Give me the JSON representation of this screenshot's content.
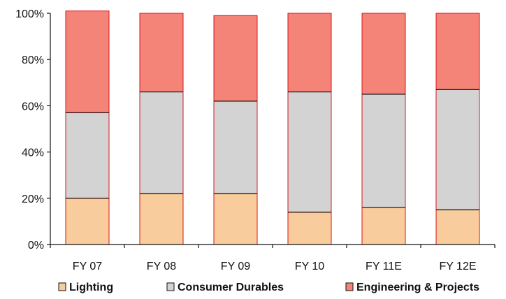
{
  "chart_data": {
    "type": "bar",
    "stacked": true,
    "categories": [
      "FY 07",
      "FY 08",
      "FY 09",
      "FY 10",
      "FY 11E",
      "FY 12E"
    ],
    "series": [
      {
        "name": "Lighting",
        "values": [
          20,
          22,
          22,
          14,
          16,
          15
        ],
        "color": "#f8cc9c"
      },
      {
        "name": "Consumer Durables",
        "values": [
          37,
          44,
          40,
          52,
          49,
          52
        ],
        "color": "#d3d3d3"
      },
      {
        "name": "Engineering & Projects",
        "values": [
          44,
          34,
          37,
          34,
          35,
          33
        ],
        "color": "#f48478"
      }
    ],
    "ylim": [
      0,
      100
    ],
    "yticks": [
      "0%",
      "20%",
      "40%",
      "60%",
      "80%",
      "100%"
    ],
    "ytick_values": [
      0,
      20,
      40,
      60,
      80,
      100
    ],
    "bar_outline_color": "#e0101a",
    "boundary_color": "#111111",
    "grid": false,
    "legend_position": "bottom"
  }
}
